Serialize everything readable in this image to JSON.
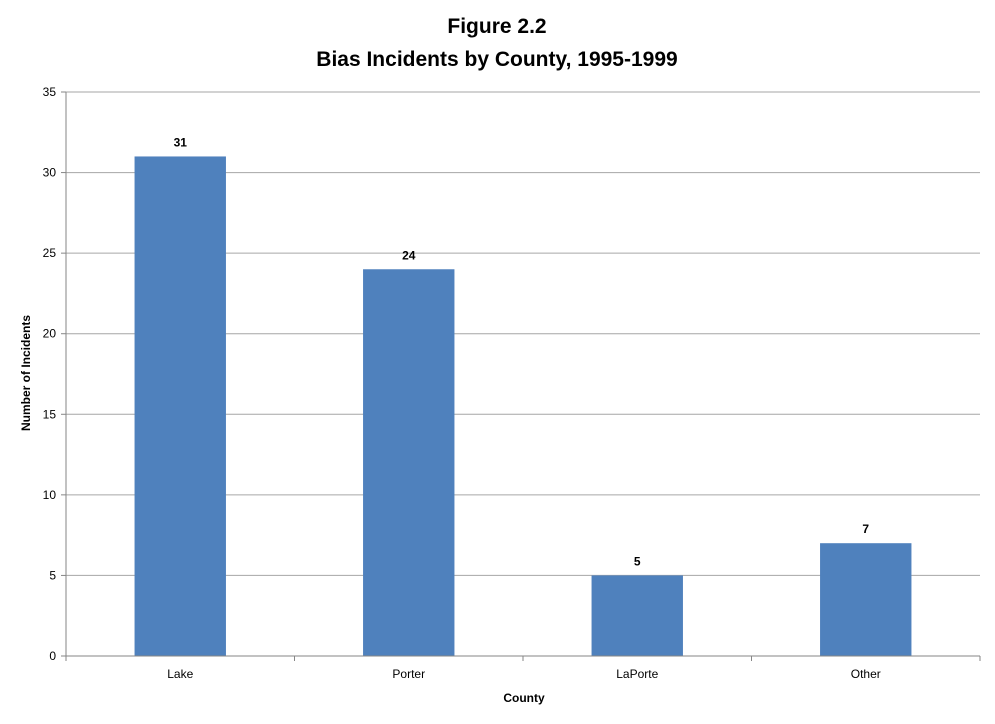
{
  "chart_data": {
    "type": "bar",
    "title": "Figure 2.2",
    "subtitle": "Bias Incidents by County, 1995-1999",
    "xlabel": "County",
    "ylabel": "Number of Incidents",
    "categories": [
      "Lake",
      "Porter",
      "LaPorte",
      "Other"
    ],
    "values": [
      31,
      24,
      5,
      7
    ],
    "ylim": [
      0,
      35
    ],
    "yticks": [
      0,
      5,
      10,
      15,
      20,
      25,
      30,
      35
    ],
    "grid": true,
    "legend": "none",
    "data_labels": true,
    "bar_color": "#4F81BD",
    "gridline_color": "#A6A6A6",
    "axis_color": "#868686"
  }
}
